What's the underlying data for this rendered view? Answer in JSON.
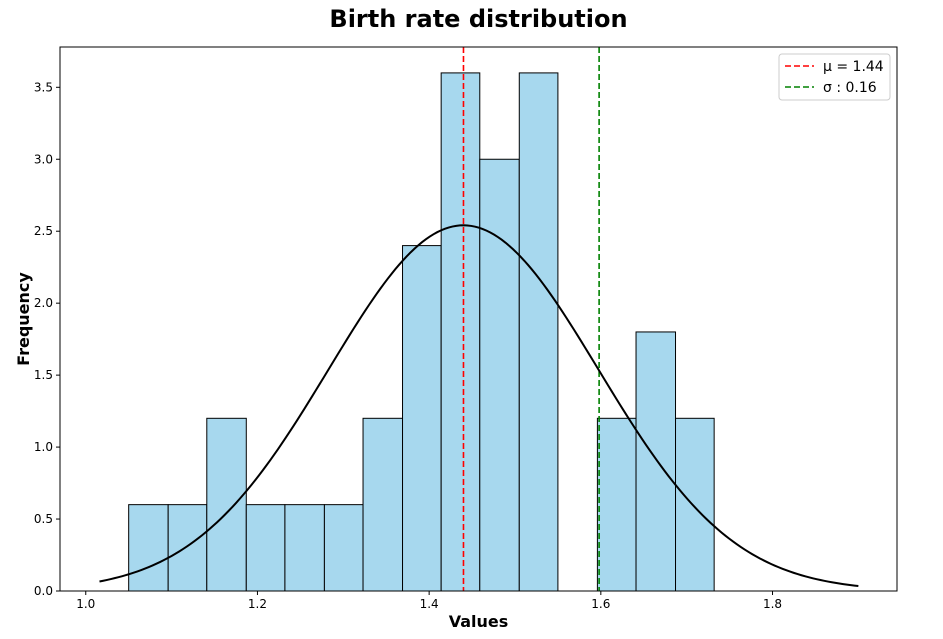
{
  "chart_data": {
    "type": "bar",
    "title": "Birth rate distribution",
    "xlabel": "Values",
    "ylabel": "Frequency",
    "xlim": [
      0.97,
      1.945
    ],
    "ylim": [
      0,
      3.78
    ],
    "xticks": [
      1.0,
      1.2,
      1.4,
      1.6,
      1.8
    ],
    "xtick_labels": [
      "1.0",
      "1.2",
      "1.4",
      "1.6",
      "1.8"
    ],
    "yticks": [
      0,
      0.5,
      1.0,
      1.5,
      2.0,
      2.5,
      3.0,
      3.5
    ],
    "ytick_labels": [
      "0.0",
      "0.5",
      "1.0",
      "1.5",
      "2.0",
      "2.5",
      "3.0",
      "3.5"
    ],
    "grid": false,
    "bar_color": "#a7d8ee",
    "bins": [
      {
        "x0": 1.05,
        "x1": 1.096,
        "value": 0.6
      },
      {
        "x0": 1.096,
        "x1": 1.141,
        "value": 0.6
      },
      {
        "x0": 1.141,
        "x1": 1.187,
        "value": 1.2
      },
      {
        "x0": 1.187,
        "x1": 1.232,
        "value": 0.6
      },
      {
        "x0": 1.232,
        "x1": 1.278,
        "value": 0.6
      },
      {
        "x0": 1.278,
        "x1": 1.323,
        "value": 0.6
      },
      {
        "x0": 1.323,
        "x1": 1.369,
        "value": 1.2
      },
      {
        "x0": 1.369,
        "x1": 1.414,
        "value": 2.4
      },
      {
        "x0": 1.414,
        "x1": 1.459,
        "value": 3.6
      },
      {
        "x0": 1.459,
        "x1": 1.505,
        "value": 3.0
      },
      {
        "x0": 1.505,
        "x1": 1.55,
        "value": 3.6
      },
      {
        "x0": 1.55,
        "x1": 1.596,
        "value": 0.0
      },
      {
        "x0": 1.596,
        "x1": 1.641,
        "value": 1.2
      },
      {
        "x0": 1.641,
        "x1": 1.687,
        "value": 1.8
      },
      {
        "x0": 1.687,
        "x1": 1.732,
        "value": 1.2
      }
    ],
    "normal_curve": {
      "mu": 1.44,
      "sigma": 0.157,
      "x_start": 1.016,
      "x_end": 1.9,
      "color": "#000000"
    },
    "reference_lines": [
      {
        "x": 1.44,
        "color": "#ff0000",
        "style": "dashed",
        "label": "μ = 1.44"
      },
      {
        "x": 1.598,
        "color": "#008000",
        "style": "dashed",
        "label": "σ : 0.16"
      }
    ],
    "legend": {
      "position": "top-right"
    }
  }
}
